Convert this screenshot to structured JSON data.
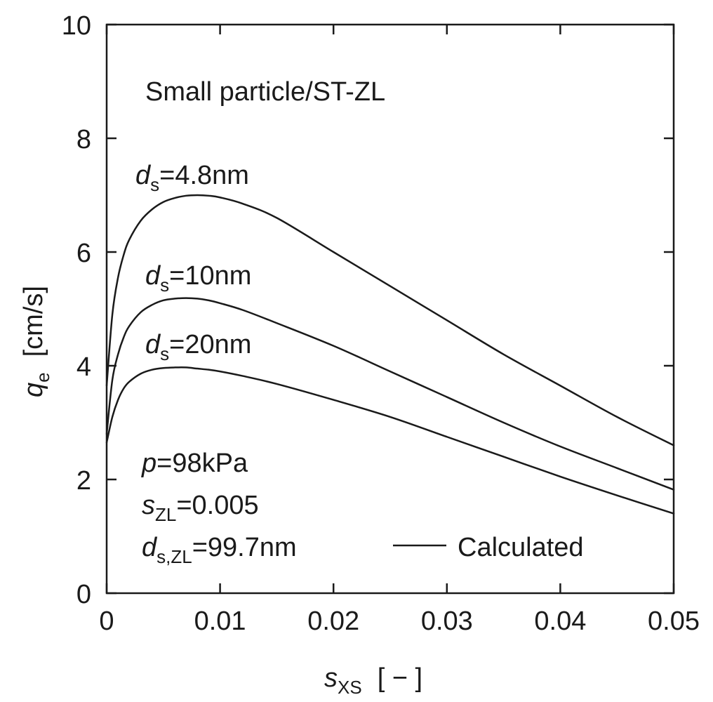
{
  "chart_data": {
    "type": "line",
    "title": "Small particle/ST-ZL",
    "xlabel": {
      "var": "s",
      "sub": "XS",
      "unit": "[ − ]"
    },
    "ylabel": {
      "var": "q",
      "sub": "e",
      "unit": "[cm/s]"
    },
    "xlim": [
      0,
      0.05
    ],
    "ylim": [
      0,
      10
    ],
    "xticks": [
      0,
      0.01,
      0.02,
      0.03,
      0.04,
      0.05
    ],
    "xtick_labels": [
      "0",
      "0.01",
      "0.02",
      "0.03",
      "0.04",
      "0.05"
    ],
    "yticks": [
      0,
      2,
      4,
      6,
      8,
      10
    ],
    "ytick_labels": [
      "0",
      "2",
      "4",
      "6",
      "8",
      "10"
    ],
    "grid": false,
    "series": [
      {
        "name": "ds=4.8nm",
        "x": [
          0,
          0.0005,
          0.001,
          0.0015,
          0.002,
          0.003,
          0.004,
          0.005,
          0.006,
          0.007,
          0.008,
          0.009,
          0.01,
          0.012,
          0.015,
          0.02,
          0.025,
          0.03,
          0.035,
          0.04,
          0.045,
          0.05
        ],
        "y": [
          3.65,
          4.9,
          5.55,
          5.95,
          6.22,
          6.55,
          6.75,
          6.88,
          6.95,
          6.99,
          7.0,
          6.99,
          6.96,
          6.85,
          6.6,
          6.0,
          5.4,
          4.8,
          4.2,
          3.65,
          3.1,
          2.6
        ]
      },
      {
        "name": "ds=10nm",
        "x": [
          0,
          0.0005,
          0.001,
          0.0015,
          0.002,
          0.003,
          0.004,
          0.005,
          0.006,
          0.007,
          0.008,
          0.009,
          0.01,
          0.012,
          0.015,
          0.02,
          0.025,
          0.03,
          0.035,
          0.04,
          0.045,
          0.05
        ],
        "y": [
          2.8,
          3.75,
          4.2,
          4.5,
          4.7,
          4.94,
          5.07,
          5.15,
          5.18,
          5.19,
          5.18,
          5.15,
          5.1,
          4.98,
          4.75,
          4.35,
          3.9,
          3.45,
          3.0,
          2.58,
          2.2,
          1.82
        ]
      },
      {
        "name": "ds=20nm",
        "x": [
          0,
          0.0005,
          0.001,
          0.0015,
          0.002,
          0.003,
          0.004,
          0.005,
          0.006,
          0.007,
          0.008,
          0.009,
          0.01,
          0.012,
          0.015,
          0.02,
          0.025,
          0.03,
          0.035,
          0.04,
          0.045,
          0.05
        ],
        "y": [
          2.65,
          3.1,
          3.4,
          3.6,
          3.72,
          3.86,
          3.93,
          3.96,
          3.97,
          3.97,
          3.95,
          3.93,
          3.9,
          3.82,
          3.68,
          3.4,
          3.1,
          2.75,
          2.4,
          2.05,
          1.72,
          1.4
        ]
      }
    ],
    "annotations": {
      "title": "Small particle/ST-ZL",
      "ds_var": "d",
      "ds_sub": "s",
      "ds_48": "=4.8nm",
      "ds_10": "=10nm",
      "ds_20": "=20nm",
      "p_var": "p",
      "p_val": "=98kPa",
      "szl_var": "s",
      "szl_sub": "ZL",
      "szl_val": "=0.005",
      "dszl_var": "d",
      "dszl_sub": "s,ZL",
      "dszl_val": "=99.7nm"
    },
    "legend": {
      "label": "Calculated",
      "position": "bottom-right"
    },
    "colors": {
      "line": "#1a1a1a",
      "axis": "#1a1a1a"
    }
  }
}
